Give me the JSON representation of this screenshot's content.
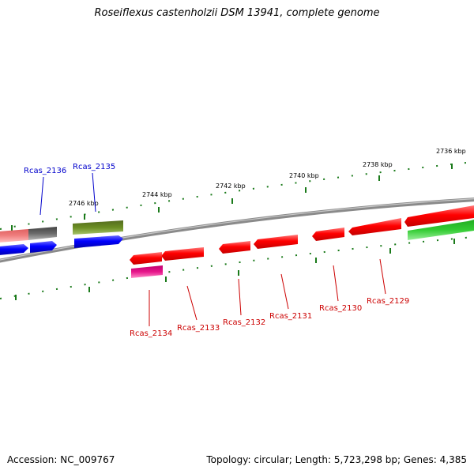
{
  "title": "Roseiflexus castenholzii DSM 13941, complete genome",
  "footer": {
    "accession": "Accession: NC_009767",
    "topology": "Topology: circular; Length: 5,723,298 bp; Genes: 4,385"
  },
  "ticks": [
    {
      "label": "2736 kbp"
    },
    {
      "label": "2738 kbp"
    },
    {
      "label": "2740 kbp"
    },
    {
      "label": "2742 kbp"
    },
    {
      "label": "2744 kbp"
    },
    {
      "label": "2746 kbp"
    }
  ],
  "genes": [
    {
      "label": "Rcas_2136",
      "color": "#0000cc"
    },
    {
      "label": "Rcas_2135",
      "color": "#0000cc"
    },
    {
      "label": "Rcas_2134",
      "color": "#cc0000"
    },
    {
      "label": "Rcas_2133",
      "color": "#cc0000"
    },
    {
      "label": "Rcas_2132",
      "color": "#cc0000"
    },
    {
      "label": "Rcas_2131",
      "color": "#cc0000"
    },
    {
      "label": "Rcas_2130",
      "color": "#cc0000"
    },
    {
      "label": "Rcas_2129",
      "color": "#cc0000"
    }
  ],
  "colors": {
    "backbone": "#7a7a7a",
    "tick": "#1a7a1a",
    "red_feature": "#ff0000",
    "blue_feature": "#0000ff",
    "green_feature": "#33cc33",
    "olive_feature": "#6b8e23",
    "magenta_feature": "#e6158a",
    "pink_feature": "#f08080",
    "grey_feature": "#6a6a6a"
  }
}
